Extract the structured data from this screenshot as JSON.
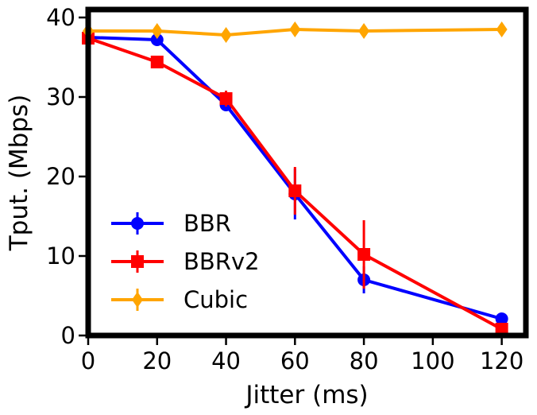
{
  "chart_data": {
    "type": "line",
    "xlabel": "Jitter (ms)",
    "ylabel": "Tput. (Mbps)",
    "xlim": [
      0,
      127
    ],
    "ylim": [
      0,
      41
    ],
    "xticks": [
      0,
      20,
      40,
      60,
      80,
      100,
      120
    ],
    "yticks": [
      0,
      10,
      20,
      30,
      40
    ],
    "grid": false,
    "legend_position": "lower-left",
    "x": [
      0,
      20,
      40,
      60,
      80,
      120
    ],
    "series": [
      {
        "name": "BBR",
        "color": "#0000ff",
        "marker": "circle",
        "values": [
          37.5,
          37.2,
          29.0,
          17.8,
          7.0,
          2.1
        ],
        "error": [
          0,
          0,
          0.8,
          3.2,
          1.7,
          0
        ]
      },
      {
        "name": "BBRv2",
        "color": "#ff0000",
        "marker": "square",
        "values": [
          37.4,
          34.4,
          29.8,
          18.2,
          10.2,
          0.8
        ],
        "error": [
          0,
          0,
          1.0,
          3.0,
          4.3,
          0
        ]
      },
      {
        "name": "Cubic",
        "color": "#ffa500",
        "marker": "diamond",
        "values": [
          38.3,
          38.3,
          37.8,
          38.5,
          38.3,
          38.5
        ],
        "error": [
          0.3,
          0,
          0,
          0,
          0,
          0
        ]
      }
    ]
  }
}
